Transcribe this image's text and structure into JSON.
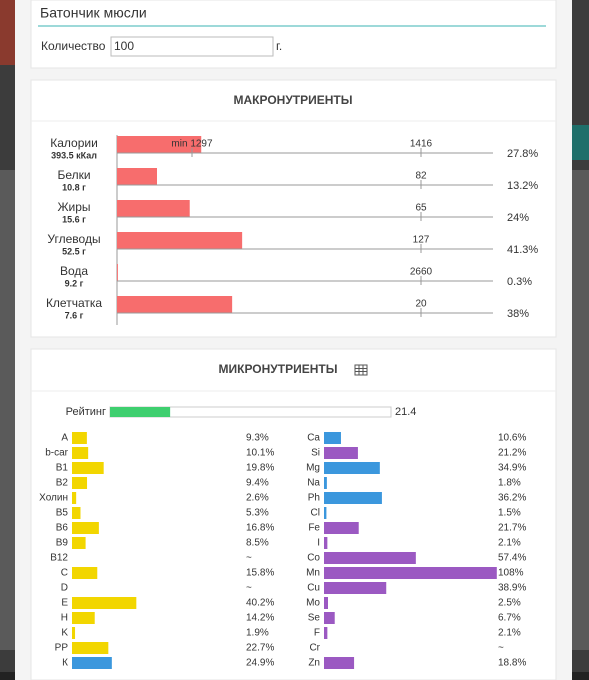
{
  "food": {
    "name": "Батончик мюсли",
    "quantity_label": "Количество",
    "quantity": "100",
    "unit": "г."
  },
  "macronutrients": {
    "title": "МАКРОНУТРИЕНТЫ",
    "bar_color": "#f76d6d",
    "rows": [
      {
        "name": "Калории",
        "amount": "393.5 кКал",
        "min": "min 1297",
        "norm": 1416,
        "value": 27.8,
        "value_label": "27.8%"
      },
      {
        "name": "Белки",
        "amount": "10.8 г",
        "norm": 82,
        "value": 13.2,
        "value_label": "13.2%"
      },
      {
        "name": "Жиры",
        "amount": "15.6 г",
        "norm": 65,
        "value": 24,
        "value_label": "24%"
      },
      {
        "name": "Углеводы",
        "amount": "52.5 г",
        "norm": 127,
        "value": 41.3,
        "value_label": "41.3%"
      },
      {
        "name": "Вода",
        "amount": "9.2 г",
        "norm": 2660,
        "value": 0.3,
        "value_label": "0.3%"
      },
      {
        "name": "Клетчатка",
        "amount": "7.6 г",
        "norm": 20,
        "value": 38,
        "value_label": "38%"
      }
    ]
  },
  "micronutrients": {
    "title": "МИКРОНУТРИЕНТЫ",
    "rating": {
      "label": "Рейтинг",
      "value": 21.4,
      "color": "#3ecf6f"
    },
    "left": [
      {
        "name": "A",
        "value": 9.3,
        "value_label": "9.3%",
        "color": "#f2d600"
      },
      {
        "name": "b-car",
        "value": 10.1,
        "value_label": "10.1%",
        "color": "#f2d600"
      },
      {
        "name": "B1",
        "value": 19.8,
        "value_label": "19.8%",
        "color": "#f2d600"
      },
      {
        "name": "B2",
        "value": 9.4,
        "value_label": "9.4%",
        "color": "#f2d600"
      },
      {
        "name": "Холин",
        "value": 2.6,
        "value_label": "2.6%",
        "color": "#f2d600"
      },
      {
        "name": "B5",
        "value": 5.3,
        "value_label": "5.3%",
        "color": "#f2d600"
      },
      {
        "name": "B6",
        "value": 16.8,
        "value_label": "16.8%",
        "color": "#f2d600"
      },
      {
        "name": "B9",
        "value": 8.5,
        "value_label": "8.5%",
        "color": "#f2d600"
      },
      {
        "name": "B12",
        "value": null,
        "value_label": "~"
      },
      {
        "name": "C",
        "value": 15.8,
        "value_label": "15.8%",
        "color": "#f2d600"
      },
      {
        "name": "D",
        "value": null,
        "value_label": "~"
      },
      {
        "name": "E",
        "value": 40.2,
        "value_label": "40.2%",
        "color": "#f2d600"
      },
      {
        "name": "H",
        "value": 14.2,
        "value_label": "14.2%",
        "color": "#f2d600"
      },
      {
        "name": "K",
        "value": 1.9,
        "value_label": "1.9%",
        "color": "#f2d600"
      },
      {
        "name": "PP",
        "value": 22.7,
        "value_label": "22.7%",
        "color": "#f2d600"
      },
      {
        "name": "К",
        "value": 24.9,
        "value_label": "24.9%",
        "color": "#3b97dd"
      }
    ],
    "right": [
      {
        "name": "Ca",
        "value": 10.6,
        "value_label": "10.6%",
        "color": "#3b97dd"
      },
      {
        "name": "Si",
        "value": 21.2,
        "value_label": "21.2%",
        "color": "#9b59c2"
      },
      {
        "name": "Mg",
        "value": 34.9,
        "value_label": "34.9%",
        "color": "#3b97dd"
      },
      {
        "name": "Na",
        "value": 1.8,
        "value_label": "1.8%",
        "color": "#3b97dd"
      },
      {
        "name": "Ph",
        "value": 36.2,
        "value_label": "36.2%",
        "color": "#3b97dd"
      },
      {
        "name": "Cl",
        "value": 1.5,
        "value_label": "1.5%",
        "color": "#3b97dd"
      },
      {
        "name": "Fe",
        "value": 21.7,
        "value_label": "21.7%",
        "color": "#9b59c2"
      },
      {
        "name": "I",
        "value": 2.1,
        "value_label": "2.1%",
        "color": "#9b59c2"
      },
      {
        "name": "Co",
        "value": 57.4,
        "value_label": "57.4%",
        "color": "#9b59c2"
      },
      {
        "name": "Mn",
        "value": 108,
        "value_label": "108%",
        "color": "#9b59c2"
      },
      {
        "name": "Cu",
        "value": 38.9,
        "value_label": "38.9%",
        "color": "#9b59c2"
      },
      {
        "name": "Mo",
        "value": 2.5,
        "value_label": "2.5%",
        "color": "#9b59c2"
      },
      {
        "name": "Se",
        "value": 6.7,
        "value_label": "6.7%",
        "color": "#9b59c2"
      },
      {
        "name": "F",
        "value": 2.1,
        "value_label": "2.1%",
        "color": "#9b59c2"
      },
      {
        "name": "Cr",
        "value": null,
        "value_label": "~"
      },
      {
        "name": "Zn",
        "value": 18.8,
        "value_label": "18.8%",
        "color": "#9b59c2"
      }
    ]
  }
}
